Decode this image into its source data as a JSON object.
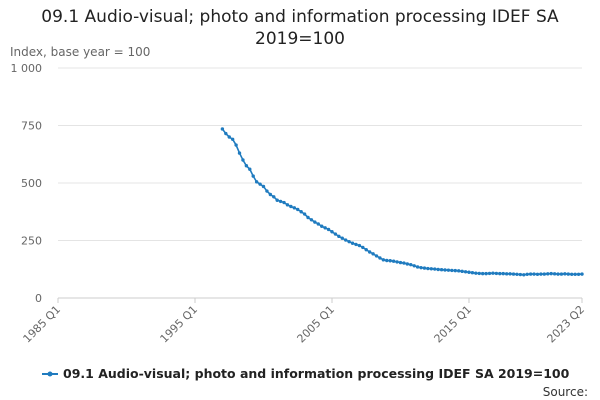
{
  "chart_data": {
    "type": "line",
    "title": "09.1 Audio-visual; photo and information processing IDEF SA 2019=100",
    "y_label": "Index, base year = 100",
    "source": "Source:",
    "xlim": [
      "1985 Q1",
      "2023 Q2"
    ],
    "xticks": [
      "1985 Q1",
      "1995 Q1",
      "2005 Q1",
      "2015 Q1",
      "2023 Q2"
    ],
    "ylim": [
      0,
      1000
    ],
    "yticks": [
      0,
      250,
      500,
      750,
      {
        "value": 1000,
        "label": "1 000"
      }
    ],
    "grid": true,
    "legend": "bottom",
    "x": [
      "1997 Q1",
      "1997 Q2",
      "1997 Q3",
      "1997 Q4",
      "1998 Q1",
      "1998 Q2",
      "1998 Q3",
      "1998 Q4",
      "1999 Q1",
      "1999 Q2",
      "1999 Q3",
      "1999 Q4",
      "2000 Q1",
      "2000 Q2",
      "2000 Q3",
      "2000 Q4",
      "2001 Q1",
      "2001 Q2",
      "2001 Q3",
      "2001 Q4",
      "2002 Q1",
      "2002 Q2",
      "2002 Q3",
      "2002 Q4",
      "2003 Q1",
      "2003 Q2",
      "2003 Q3",
      "2003 Q4",
      "2004 Q1",
      "2004 Q2",
      "2004 Q3",
      "2004 Q4",
      "2005 Q1",
      "2005 Q2",
      "2005 Q3",
      "2005 Q4",
      "2006 Q1",
      "2006 Q2",
      "2006 Q3",
      "2006 Q4",
      "2007 Q1",
      "2007 Q2",
      "2007 Q3",
      "2007 Q4",
      "2008 Q1",
      "2008 Q2",
      "2008 Q3",
      "2008 Q4",
      "2009 Q1",
      "2009 Q2",
      "2009 Q3",
      "2009 Q4",
      "2010 Q1",
      "2010 Q2",
      "2010 Q3",
      "2010 Q4",
      "2011 Q1",
      "2011 Q2",
      "2011 Q3",
      "2011 Q4",
      "2012 Q1",
      "2012 Q2",
      "2012 Q3",
      "2012 Q4",
      "2013 Q1",
      "2013 Q2",
      "2013 Q3",
      "2013 Q4",
      "2014 Q1",
      "2014 Q2",
      "2014 Q3",
      "2014 Q4",
      "2015 Q1",
      "2015 Q2",
      "2015 Q3",
      "2015 Q4",
      "2016 Q1",
      "2016 Q2",
      "2016 Q3",
      "2016 Q4",
      "2017 Q1",
      "2017 Q2",
      "2017 Q3",
      "2017 Q4",
      "2018 Q1",
      "2018 Q2",
      "2018 Q3",
      "2018 Q4",
      "2019 Q1",
      "2019 Q2",
      "2019 Q3",
      "2019 Q4",
      "2020 Q1",
      "2020 Q2",
      "2020 Q3",
      "2020 Q4",
      "2021 Q1",
      "2021 Q2",
      "2021 Q3",
      "2021 Q4",
      "2022 Q1",
      "2022 Q2",
      "2022 Q3",
      "2022 Q4",
      "2023 Q1",
      "2023 Q2"
    ],
    "series": [
      {
        "name": "09.1 Audio-visual; photo and information processing IDEF SA 2019=100",
        "color": "#1f7bbf",
        "values": [
          735,
          715,
          700,
          690,
          665,
          630,
          600,
          575,
          560,
          530,
          505,
          495,
          485,
          465,
          450,
          440,
          425,
          420,
          415,
          405,
          398,
          392,
          385,
          375,
          365,
          350,
          340,
          330,
          322,
          312,
          305,
          298,
          288,
          278,
          268,
          260,
          252,
          245,
          238,
          233,
          228,
          220,
          210,
          200,
          192,
          183,
          174,
          166,
          163,
          162,
          160,
          157,
          154,
          152,
          148,
          145,
          140,
          135,
          132,
          130,
          128,
          127,
          126,
          124,
          123,
          122,
          121,
          120,
          119,
          118,
          116,
          114,
          112,
          110,
          108,
          107,
          106,
          106,
          107,
          108,
          107,
          106,
          106,
          105,
          105,
          104,
          103,
          102,
          101,
          103,
          104,
          104,
          103,
          104,
          104,
          105,
          106,
          105,
          104,
          104,
          105,
          104,
          103,
          103,
          103,
          104
        ]
      }
    ]
  }
}
